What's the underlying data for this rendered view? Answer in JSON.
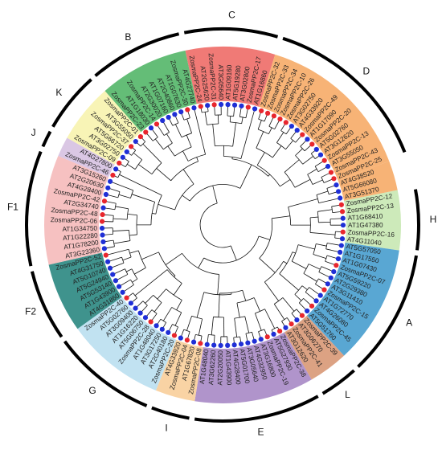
{
  "groups": [
    {
      "id": "E",
      "label": "E",
      "color": "#a98bc7"
    },
    {
      "id": "L",
      "label": "L",
      "color": "#d99a78"
    },
    {
      "id": "A",
      "label": "A",
      "color": "#4b9fcf"
    },
    {
      "id": "H",
      "label": "H",
      "color": "#c9e8b4"
    },
    {
      "id": "D",
      "label": "D",
      "color": "#f6ac6a"
    },
    {
      "id": "C",
      "label": "C",
      "color": "#ef6f6a"
    },
    {
      "id": "B",
      "label": "B",
      "color": "#57b76b"
    },
    {
      "id": "K",
      "label": "K",
      "color": "#f7f3b0"
    },
    {
      "id": "J",
      "label": "J",
      "color": "#d7c2e2"
    },
    {
      "id": "F1",
      "label": "F1",
      "color": "#f5bcbc"
    },
    {
      "id": "F2",
      "label": "F2",
      "color": "#2f8a83"
    },
    {
      "id": "G",
      "label": "G",
      "color": "#bcdff0"
    },
    {
      "id": "I",
      "label": "I",
      "color": "#f8cf9c"
    }
  ],
  "leaves": [
    {
      "label": "AT4G38520",
      "group": "D",
      "species": "AT"
    },
    {
      "label": "AT5G66080",
      "group": "D",
      "species": "AT"
    },
    {
      "label": "AT3G51370",
      "group": "D",
      "species": "AT"
    },
    {
      "label": "ZosmaPP2C-12",
      "group": "H",
      "species": "Zosma"
    },
    {
      "label": "ZosmaPP2C-13",
      "group": "H",
      "species": "Zosma"
    },
    {
      "label": "AT1G68410",
      "group": "H",
      "species": "AT"
    },
    {
      "label": "AT1G47380",
      "group": "H",
      "species": "AT"
    },
    {
      "label": "ZosmaPP2C-16",
      "group": "H",
      "species": "Zosma"
    },
    {
      "label": "AT4G11040",
      "group": "H",
      "species": "AT"
    },
    {
      "label": "AT5G57050",
      "group": "A",
      "species": "AT"
    },
    {
      "label": "AT1G17550",
      "group": "A",
      "species": "AT"
    },
    {
      "label": "AT1G07430",
      "group": "A",
      "species": "AT"
    },
    {
      "label": "ZosmaPP2C-07",
      "group": "A",
      "species": "Zosma"
    },
    {
      "label": "AT5G59220",
      "group": "A",
      "species": "AT"
    },
    {
      "label": "AT2G29380",
      "group": "A",
      "species": "AT"
    },
    {
      "label": "AT3G11410",
      "group": "A",
      "species": "AT"
    },
    {
      "label": "ZosmaPP2C-15",
      "group": "A",
      "species": "Zosma"
    },
    {
      "label": "AT1G72770",
      "group": "A",
      "species": "AT"
    },
    {
      "label": "AT4G26080",
      "group": "A",
      "species": "AT"
    },
    {
      "label": "ZosmaPP2C-45",
      "group": "A",
      "species": "Zosma"
    },
    {
      "label": "AT5G51760",
      "group": "A",
      "species": "AT"
    },
    {
      "label": "ZosmaPP2C-39",
      "group": "L",
      "species": "Zosma"
    },
    {
      "label": "AT3G06270",
      "group": "L",
      "species": "AT"
    },
    {
      "label": "ZosmaPP2C-41",
      "group": "L",
      "species": "Zosma"
    },
    {
      "label": "AT3G12620",
      "group": "L",
      "species": "AT"
    },
    {
      "label": "ZosmaPP2C-38",
      "group": "E",
      "species": "Zosma"
    },
    {
      "label": "AT5G27930",
      "group": "E",
      "species": "AT"
    },
    {
      "label": "ZosmaPP2C-19",
      "group": "E",
      "species": "Zosma"
    },
    {
      "label": "AT3G16800",
      "group": "E",
      "species": "AT"
    },
    {
      "label": "AT4G32950",
      "group": "E",
      "species": "AT"
    },
    {
      "label": "AT3G05640",
      "group": "E",
      "species": "AT"
    },
    {
      "label": "AT5G01700",
      "group": "E",
      "species": "AT"
    },
    {
      "label": "AT4G28400",
      "group": "E",
      "species": "AT"
    },
    {
      "label": "AT1G43900",
      "group": "E",
      "species": "AT"
    },
    {
      "label": "AT2G20050",
      "group": "E",
      "species": "AT"
    },
    {
      "label": "AT3G62260",
      "group": "E",
      "species": "AT"
    },
    {
      "label": "AT1G48040",
      "group": "E",
      "species": "AT"
    },
    {
      "label": "ZosmaPP2C-08",
      "group": "I",
      "species": "Zosma"
    },
    {
      "label": "AT1G67820",
      "group": "I",
      "species": "AT"
    },
    {
      "label": "ZosmaPP2C-04",
      "group": "I",
      "species": "Zosma"
    },
    {
      "label": "AT4G33920",
      "group": "I",
      "species": "AT"
    },
    {
      "label": "ZosmaPP2C-20",
      "group": "G",
      "species": "Zosma"
    },
    {
      "label": "AT2G40180",
      "group": "G",
      "species": "AT"
    },
    {
      "label": "AT3G17250",
      "group": "G",
      "species": "AT"
    },
    {
      "label": "AT1G48040",
      "group": "G",
      "species": "AT"
    },
    {
      "label": "ZosmaPP2C-28",
      "group": "G",
      "species": "Zosma"
    },
    {
      "label": "AT5G06750",
      "group": "G",
      "species": "AT"
    },
    {
      "label": "AT1G16220",
      "group": "G",
      "species": "AT"
    },
    {
      "label": "AT3G09400",
      "group": "G",
      "species": "AT"
    },
    {
      "label": "AT5G02760",
      "group": "G",
      "species": "AT"
    },
    {
      "label": "ZosmaPP2C-40",
      "group": "G",
      "species": "Zosma"
    },
    {
      "label": "AT4G31860",
      "group": "F2",
      "species": "AT"
    },
    {
      "label": "AT1G43900",
      "group": "F2",
      "species": "AT"
    },
    {
      "label": "AT5G53140",
      "group": "F2",
      "species": "AT"
    },
    {
      "label": "AT5G24940",
      "group": "F2",
      "species": "AT"
    },
    {
      "label": "AT5G10740",
      "group": "F2",
      "species": "AT"
    },
    {
      "label": "AT4G31750",
      "group": "F2",
      "species": "AT"
    },
    {
      "label": "ZosmaPP2C-52",
      "group": "F2",
      "species": "Zosma"
    },
    {
      "label": "AT3G23360",
      "group": "F1",
      "species": "AT"
    },
    {
      "label": "AT1G78200",
      "group": "F1",
      "species": "AT"
    },
    {
      "label": "AT1G22280",
      "group": "F1",
      "species": "AT"
    },
    {
      "label": "AT1G34750",
      "group": "F1",
      "species": "AT"
    },
    {
      "label": "ZosmaPP2C-06",
      "group": "F1",
      "species": "Zosma"
    },
    {
      "label": "ZosmaPP2C-48",
      "group": "F1",
      "species": "Zosma"
    },
    {
      "label": "AT2G34740",
      "group": "F1",
      "species": "AT"
    },
    {
      "label": "ZosmaPP2C-42",
      "group": "F1",
      "species": "Zosma"
    },
    {
      "label": "AT4G28400",
      "group": "F1",
      "species": "AT"
    },
    {
      "label": "AT2G20630",
      "group": "F1",
      "species": "AT"
    },
    {
      "label": "AT3G15260",
      "group": "F1",
      "species": "AT"
    },
    {
      "label": "ZosmaPP2C-46",
      "group": "J",
      "species": "Zosma"
    },
    {
      "label": "AT4G27800",
      "group": "J",
      "species": "AT"
    },
    {
      "label": "ZosmaPP2C-09",
      "group": "K",
      "species": "Zosma"
    },
    {
      "label": "AT3G02750",
      "group": "K",
      "species": "AT"
    },
    {
      "label": "AT5G66720",
      "group": "K",
      "species": "AT"
    },
    {
      "label": "ZosmaPP2C-37",
      "group": "K",
      "species": "Zosma"
    },
    {
      "label": "AT3G55050",
      "group": "K",
      "species": "AT"
    },
    {
      "label": "ZosmaPP2C-01",
      "group": "K",
      "species": "Zosma"
    },
    {
      "label": "ZosmaPP2C-23",
      "group": "B",
      "species": "Zosma"
    },
    {
      "label": "AT1G18030",
      "group": "B",
      "species": "AT"
    },
    {
      "label": "ZosmaPP2C-14",
      "group": "B",
      "species": "Zosma"
    },
    {
      "label": "AT2G30020",
      "group": "B",
      "species": "AT"
    },
    {
      "label": "AT1G07160",
      "group": "B",
      "species": "AT"
    },
    {
      "label": "AT2G40860",
      "group": "B",
      "species": "AT"
    },
    {
      "label": "AT1G07630",
      "group": "B",
      "species": "AT"
    },
    {
      "label": "ZosmaPP2C-30",
      "group": "B",
      "species": "Zosma"
    },
    {
      "label": "AT4G27740",
      "group": "B",
      "species": "AT"
    },
    {
      "label": "ZosmaPP2C-24",
      "group": "C",
      "species": "Zosma"
    },
    {
      "label": "AT2G25620",
      "group": "C",
      "species": "AT"
    },
    {
      "label": "ZosmaPP2C-31",
      "group": "C",
      "species": "Zosma"
    },
    {
      "label": "AT3G05640",
      "group": "C",
      "species": "AT"
    },
    {
      "label": "AT1G09160",
      "group": "C",
      "species": "AT"
    },
    {
      "label": "AT5G19280",
      "group": "C",
      "species": "AT"
    },
    {
      "label": "AT3G02800",
      "group": "C",
      "species": "AT"
    },
    {
      "label": "ZosmaPP2C-17",
      "group": "C",
      "species": "Zosma"
    },
    {
      "label": "AT1G16860",
      "group": "C",
      "species": "AT"
    },
    {
      "label": "ZosmaPP2C-32",
      "group": "D",
      "species": "Zosma"
    },
    {
      "label": "ZosmaPP2C-33",
      "group": "D",
      "species": "Zosma"
    },
    {
      "label": "ZosmaPP2C-34",
      "group": "D",
      "species": "Zosma"
    },
    {
      "label": "ZosmaPP2C-10",
      "group": "D",
      "species": "Zosma"
    },
    {
      "label": "ZosmaPP2C-26",
      "group": "D",
      "species": "Zosma"
    },
    {
      "label": "AT3G02750",
      "group": "D",
      "species": "AT"
    },
    {
      "label": "AT4G33920",
      "group": "D",
      "species": "AT"
    },
    {
      "label": "ZosmaPP2C-49",
      "group": "D",
      "species": "Zosma"
    },
    {
      "label": "AT1G17090",
      "group": "D",
      "species": "AT"
    },
    {
      "label": "ZosmaPP2C-20",
      "group": "D",
      "species": "Zosma"
    },
    {
      "label": "AT5G02760",
      "group": "D",
      "species": "AT"
    },
    {
      "label": "AT3G12620",
      "group": "D",
      "species": "AT"
    },
    {
      "label": "ZosmaPP2C-13",
      "group": "D",
      "species": "Zosma"
    },
    {
      "label": "AT3G55050",
      "group": "D",
      "species": "AT"
    },
    {
      "label": "ZosmaPP2C-43",
      "group": "D",
      "species": "Zosma"
    },
    {
      "label": "ZosmaPP2C-25",
      "group": "D",
      "species": "Zosma"
    }
  ],
  "marker_colors": {
    "Zosma": "#e8262d",
    "AT": "#1f2fd6"
  },
  "colors": {
    "branch": "#111111",
    "arc": "#000000"
  }
}
